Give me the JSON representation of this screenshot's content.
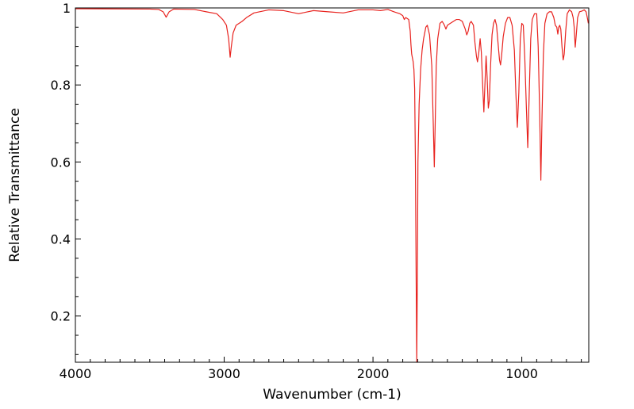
{
  "chart_data": {
    "type": "line",
    "title": "",
    "xlabel": "Wavenumber (cm-1)",
    "ylabel": "Relative Transmittance",
    "xlim": [
      4000,
      550
    ],
    "ylim": [
      0.08,
      1.0
    ],
    "x_ticks": [
      4000,
      3000,
      2000,
      1000
    ],
    "y_ticks": [
      1,
      0.8,
      0.6,
      0.4,
      0.2
    ],
    "x_tick_labels": [
      "4000",
      "3000",
      "2000",
      "1000"
    ],
    "y_tick_labels": [
      "1",
      "0.8",
      "0.6",
      "0.4",
      "0.2"
    ],
    "grid": false,
    "legend": "none",
    "series": [
      {
        "color": "#e8231f",
        "points": [
          [
            4000,
            0.998
          ],
          [
            3500,
            0.997
          ],
          [
            3440,
            0.996
          ],
          [
            3410,
            0.99
          ],
          [
            3390,
            0.976
          ],
          [
            3370,
            0.99
          ],
          [
            3340,
            0.997
          ],
          [
            3200,
            0.996
          ],
          [
            3120,
            0.99
          ],
          [
            3050,
            0.985
          ],
          [
            3010,
            0.97
          ],
          [
            2985,
            0.955
          ],
          [
            2970,
            0.92
          ],
          [
            2960,
            0.872
          ],
          [
            2952,
            0.9
          ],
          [
            2940,
            0.935
          ],
          [
            2920,
            0.955
          ],
          [
            2880,
            0.965
          ],
          [
            2850,
            0.975
          ],
          [
            2800,
            0.987
          ],
          [
            2700,
            0.995
          ],
          [
            2600,
            0.993
          ],
          [
            2500,
            0.985
          ],
          [
            2400,
            0.993
          ],
          [
            2300,
            0.99
          ],
          [
            2200,
            0.987
          ],
          [
            2100,
            0.995
          ],
          [
            2000,
            0.995
          ],
          [
            1950,
            0.993
          ],
          [
            1900,
            0.996
          ],
          [
            1860,
            0.99
          ],
          [
            1820,
            0.985
          ],
          [
            1800,
            0.98
          ],
          [
            1790,
            0.97
          ],
          [
            1780,
            0.975
          ],
          [
            1760,
            0.97
          ],
          [
            1750,
            0.94
          ],
          [
            1745,
            0.905
          ],
          [
            1740,
            0.88
          ],
          [
            1730,
            0.86
          ],
          [
            1725,
            0.84
          ],
          [
            1720,
            0.79
          ],
          [
            1715,
            0.6
          ],
          [
            1710,
            0.3
          ],
          [
            1706,
            0.08
          ],
          [
            1702,
            0.3
          ],
          [
            1698,
            0.6
          ],
          [
            1690,
            0.75
          ],
          [
            1680,
            0.84
          ],
          [
            1670,
            0.89
          ],
          [
            1660,
            0.92
          ],
          [
            1645,
            0.95
          ],
          [
            1635,
            0.955
          ],
          [
            1620,
            0.93
          ],
          [
            1605,
            0.85
          ],
          [
            1595,
            0.7
          ],
          [
            1588,
            0.587
          ],
          [
            1582,
            0.7
          ],
          [
            1575,
            0.85
          ],
          [
            1565,
            0.92
          ],
          [
            1550,
            0.96
          ],
          [
            1535,
            0.965
          ],
          [
            1520,
            0.955
          ],
          [
            1510,
            0.945
          ],
          [
            1500,
            0.955
          ],
          [
            1480,
            0.96
          ],
          [
            1460,
            0.965
          ],
          [
            1440,
            0.97
          ],
          [
            1420,
            0.97
          ],
          [
            1400,
            0.965
          ],
          [
            1380,
            0.945
          ],
          [
            1370,
            0.93
          ],
          [
            1360,
            0.94
          ],
          [
            1350,
            0.96
          ],
          [
            1340,
            0.965
          ],
          [
            1325,
            0.955
          ],
          [
            1315,
            0.91
          ],
          [
            1305,
            0.875
          ],
          [
            1298,
            0.86
          ],
          [
            1290,
            0.88
          ],
          [
            1280,
            0.92
          ],
          [
            1272,
            0.885
          ],
          [
            1262,
            0.79
          ],
          [
            1255,
            0.73
          ],
          [
            1248,
            0.8
          ],
          [
            1240,
            0.875
          ],
          [
            1233,
            0.82
          ],
          [
            1225,
            0.74
          ],
          [
            1218,
            0.76
          ],
          [
            1210,
            0.85
          ],
          [
            1200,
            0.93
          ],
          [
            1190,
            0.96
          ],
          [
            1180,
            0.97
          ],
          [
            1170,
            0.955
          ],
          [
            1160,
            0.91
          ],
          [
            1150,
            0.865
          ],
          [
            1143,
            0.852
          ],
          [
            1136,
            0.875
          ],
          [
            1125,
            0.925
          ],
          [
            1110,
            0.96
          ],
          [
            1095,
            0.975
          ],
          [
            1080,
            0.975
          ],
          [
            1065,
            0.955
          ],
          [
            1050,
            0.89
          ],
          [
            1040,
            0.78
          ],
          [
            1030,
            0.69
          ],
          [
            1020,
            0.78
          ],
          [
            1010,
            0.92
          ],
          [
            1000,
            0.96
          ],
          [
            990,
            0.955
          ],
          [
            980,
            0.87
          ],
          [
            970,
            0.75
          ],
          [
            960,
            0.637
          ],
          [
            950,
            0.78
          ],
          [
            940,
            0.92
          ],
          [
            930,
            0.97
          ],
          [
            915,
            0.985
          ],
          [
            900,
            0.985
          ],
          [
            890,
            0.9
          ],
          [
            880,
            0.73
          ],
          [
            872,
            0.553
          ],
          [
            864,
            0.72
          ],
          [
            855,
            0.88
          ],
          [
            845,
            0.96
          ],
          [
            830,
            0.985
          ],
          [
            815,
            0.99
          ],
          [
            800,
            0.99
          ],
          [
            785,
            0.975
          ],
          [
            775,
            0.955
          ],
          [
            765,
            0.95
          ],
          [
            758,
            0.932
          ],
          [
            752,
            0.95
          ],
          [
            745,
            0.955
          ],
          [
            738,
            0.945
          ],
          [
            730,
            0.9
          ],
          [
            722,
            0.865
          ],
          [
            715,
            0.88
          ],
          [
            705,
            0.94
          ],
          [
            695,
            0.985
          ],
          [
            680,
            0.995
          ],
          [
            665,
            0.99
          ],
          [
            655,
            0.975
          ],
          [
            648,
            0.95
          ],
          [
            641,
            0.898
          ],
          [
            634,
            0.93
          ],
          [
            625,
            0.975
          ],
          [
            612,
            0.99
          ],
          [
            595,
            0.992
          ],
          [
            580,
            0.995
          ],
          [
            568,
            0.99
          ],
          [
            560,
            0.975
          ],
          [
            553,
            0.96
          ]
        ]
      }
    ]
  }
}
